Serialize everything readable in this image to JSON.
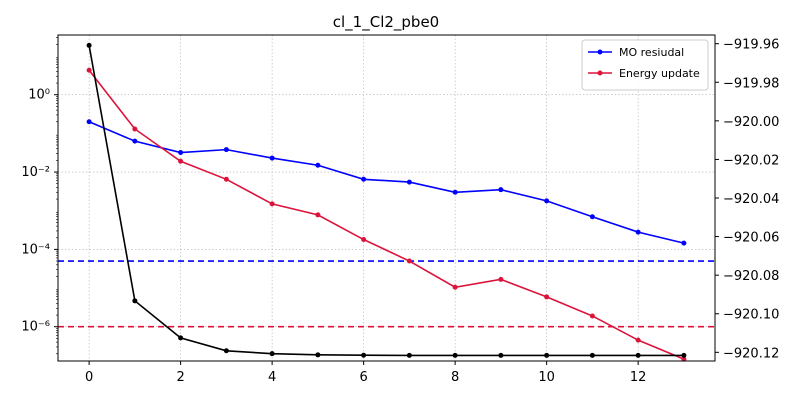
{
  "chart_data": {
    "type": "line",
    "title": "cl_1_Cl2_pbe0",
    "x": [
      0,
      1,
      2,
      3,
      4,
      5,
      6,
      7,
      8,
      9,
      10,
      11,
      12,
      13
    ],
    "x_ticks": [
      0,
      2,
      4,
      6,
      8,
      10,
      12
    ],
    "x_tick_labels": [
      "0",
      "2",
      "4",
      "6",
      "8",
      "10",
      "12"
    ],
    "xlim": [
      -0.68,
      13.68
    ],
    "y_left": {
      "scale": "log",
      "ylim": [
        1.3e-07,
        35.0
      ],
      "ticks": [
        1,
        0.01,
        0.0001,
        1e-06
      ],
      "tick_labels": [
        "10⁰",
        "10⁻²",
        "10⁻⁴",
        "10⁻⁶"
      ]
    },
    "y_right": {
      "scale": "linear",
      "ylim": [
        -920.1245,
        -919.9555
      ],
      "ticks": [
        -919.96,
        -919.98,
        -920.0,
        -920.02,
        -920.04,
        -920.06,
        -920.08,
        -920.1,
        -920.12
      ],
      "tick_labels": [
        "−919.96",
        "−919.98",
        "−920.00",
        "−920.02",
        "−920.04",
        "−920.06",
        "−920.08",
        "−920.10",
        "−920.12"
      ]
    },
    "series": [
      {
        "name": "MO resiudal",
        "axis": "left",
        "color": "#0000ff",
        "values": [
          0.2,
          0.063,
          0.032,
          0.038,
          0.023,
          0.015,
          0.0065,
          0.0055,
          0.003,
          0.0035,
          0.0018,
          0.0007,
          0.00028,
          0.000145
        ]
      },
      {
        "name": "Energy update",
        "axis": "left",
        "color": "#dc143c",
        "values": [
          4.3,
          0.13,
          0.019,
          0.0065,
          0.0015,
          0.00078,
          0.00018,
          5e-05,
          1.05e-05,
          1.68e-05,
          5.9e-06,
          1.9e-06,
          4.5e-07,
          1.45e-07
        ]
      },
      {
        "axis": "right",
        "color": "#000000",
        "values": [
          -919.9609,
          -920.0933,
          -920.1125,
          -920.1192,
          -920.1207,
          -920.1213,
          -920.1215,
          -920.1216,
          -920.1216,
          -920.1216,
          -920.1216,
          -920.1216,
          -920.1216,
          -920.1216
        ]
      }
    ],
    "hlines": [
      {
        "axis": "left",
        "value": 5e-05,
        "color": "#0000ff",
        "style": "dashed"
      },
      {
        "axis": "left",
        "value": 1e-06,
        "color": "#dc143c",
        "style": "dashed"
      }
    ],
    "grid": true,
    "legend_position": "top-right"
  }
}
